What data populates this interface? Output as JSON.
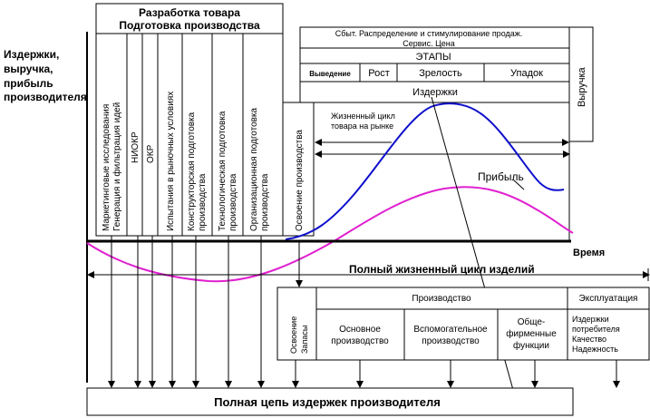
{
  "y_axis_label": [
    "Издержки,",
    "выручка,",
    "прибыль",
    "производителя"
  ],
  "time_label": "Время",
  "dev_box": {
    "title_lines": [
      "Разработка товара",
      "Подготовка производства"
    ],
    "columns": [
      [
        "Маркетинговые исследования",
        "Генерация и фильтрация идей"
      ],
      [
        "НИОКР"
      ],
      [
        "ОКР"
      ],
      [
        "Испытания в рыночных условиях"
      ],
      [
        "Конструкторская подготовка",
        "производства"
      ],
      [
        "Технологическая подготовка",
        "производства"
      ],
      [
        "Организационная подготовка",
        "производства"
      ]
    ]
  },
  "osvoenie_label": "Освоение производства",
  "stages_box": {
    "top_lines": [
      "Сбыт.  Распределение и стимулирование продаж.",
      "Сервис. Цена"
    ],
    "etapy": "ЭТАПЫ",
    "stages": [
      "Выведение",
      "Рост",
      "Зрелость",
      "Упадок"
    ],
    "costs": "Издержки"
  },
  "revenue_label": "Выручка",
  "market_cycle_lines": [
    "Жизненный цикл",
    "товара на рынке"
  ],
  "profit_label": "Прибыль",
  "full_cycle_label": "Полный жизненный цикл изделий",
  "bottom_box": {
    "first_col_lines": [
      "Освоение",
      "Запасы"
    ],
    "production_header": "Производство",
    "production_cols": [
      [
        "Основное",
        "производство"
      ],
      [
        "Вспомогательное",
        "производство"
      ],
      [
        "Обще-",
        "фирменные",
        "функции"
      ]
    ],
    "exploitation_header": "Эксплуатация",
    "exploitation_items": [
      "Издержки",
      "потребителя",
      "Качество",
      "Надежность"
    ]
  },
  "cost_chain_label": "Полная цепь издержек производителя",
  "colors": {
    "revenue_curve": "#1010cc",
    "profit_curve": "#e020d0",
    "line": "#000000"
  }
}
